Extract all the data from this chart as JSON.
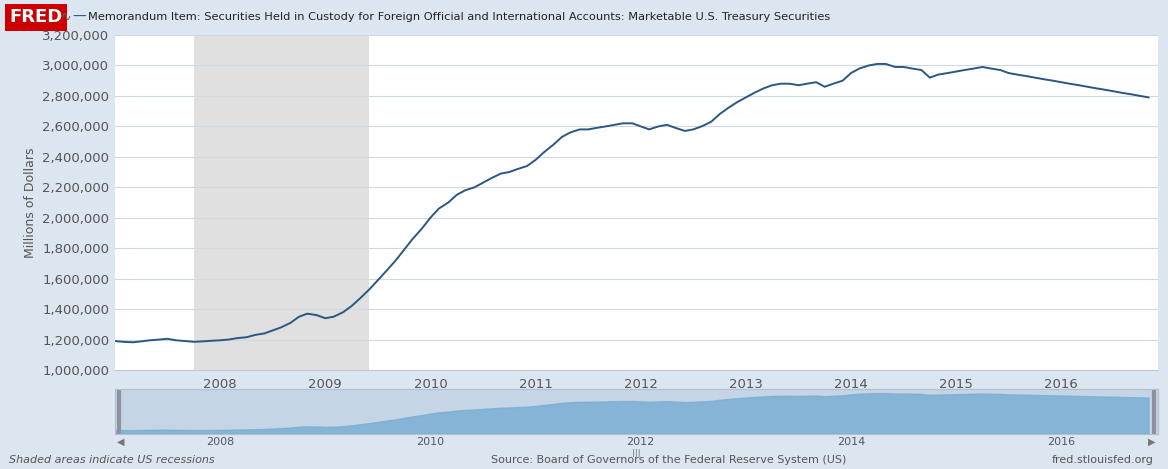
{
  "title": "Memorandum Item: Securities Held in Custody for Foreign Official and International Accounts: Marketable U.S. Treasury Securities",
  "ylabel": "Millions of Dollars",
  "line_color": "#2a5783",
  "background_color": "#dce6f0",
  "plot_bg_color": "#ffffff",
  "recession_color": "#e0e0e0",
  "recession_start": 2007.75,
  "recession_end": 2009.42,
  "ylim": [
    1000000,
    3200000
  ],
  "yticks": [
    1000000,
    1200000,
    1400000,
    1600000,
    1800000,
    2000000,
    2200000,
    2400000,
    2600000,
    2800000,
    3000000,
    3200000
  ],
  "fred_red": "#cc0000",
  "source_text": "Source: Board of Governors of the Federal Reserve System (US)",
  "recession_note": "Shaded areas indicate US recessions",
  "fred_url": "fred.stlouisfed.org",
  "line_width": 1.4,
  "data_x": [
    2007.0,
    2007.08,
    2007.17,
    2007.25,
    2007.33,
    2007.42,
    2007.5,
    2007.58,
    2007.67,
    2007.75,
    2007.83,
    2007.92,
    2008.0,
    2008.08,
    2008.17,
    2008.25,
    2008.33,
    2008.42,
    2008.5,
    2008.58,
    2008.67,
    2008.75,
    2008.83,
    2008.92,
    2009.0,
    2009.08,
    2009.17,
    2009.25,
    2009.33,
    2009.42,
    2009.5,
    2009.58,
    2009.67,
    2009.75,
    2009.83,
    2009.92,
    2010.0,
    2010.08,
    2010.17,
    2010.25,
    2010.33,
    2010.42,
    2010.5,
    2010.58,
    2010.67,
    2010.75,
    2010.83,
    2010.92,
    2011.0,
    2011.08,
    2011.17,
    2011.25,
    2011.33,
    2011.42,
    2011.5,
    2011.58,
    2011.67,
    2011.75,
    2011.83,
    2011.92,
    2012.0,
    2012.08,
    2012.17,
    2012.25,
    2012.33,
    2012.42,
    2012.5,
    2012.58,
    2012.67,
    2012.75,
    2012.83,
    2012.92,
    2013.0,
    2013.08,
    2013.17,
    2013.25,
    2013.33,
    2013.42,
    2013.5,
    2013.58,
    2013.67,
    2013.75,
    2013.83,
    2013.92,
    2014.0,
    2014.08,
    2014.17,
    2014.25,
    2014.33,
    2014.42,
    2014.5,
    2014.58,
    2014.67,
    2014.75,
    2014.83,
    2014.92,
    2015.0,
    2015.08,
    2015.17,
    2015.25,
    2015.33,
    2015.42,
    2015.5,
    2015.58,
    2015.67,
    2015.75,
    2015.83,
    2015.92,
    2016.0,
    2016.08,
    2016.17,
    2016.25,
    2016.33,
    2016.42,
    2016.5,
    2016.58,
    2016.67,
    2016.75,
    2016.83
  ],
  "data_y": [
    1190000,
    1185000,
    1182000,
    1188000,
    1195000,
    1200000,
    1205000,
    1195000,
    1190000,
    1185000,
    1188000,
    1192000,
    1195000,
    1200000,
    1210000,
    1215000,
    1230000,
    1240000,
    1260000,
    1280000,
    1310000,
    1350000,
    1370000,
    1360000,
    1340000,
    1350000,
    1380000,
    1420000,
    1470000,
    1530000,
    1590000,
    1650000,
    1720000,
    1790000,
    1860000,
    1930000,
    2000000,
    2060000,
    2100000,
    2150000,
    2180000,
    2200000,
    2230000,
    2260000,
    2290000,
    2300000,
    2320000,
    2340000,
    2380000,
    2430000,
    2480000,
    2530000,
    2560000,
    2580000,
    2580000,
    2590000,
    2600000,
    2610000,
    2620000,
    2620000,
    2600000,
    2580000,
    2600000,
    2610000,
    2590000,
    2570000,
    2580000,
    2600000,
    2630000,
    2680000,
    2720000,
    2760000,
    2790000,
    2820000,
    2850000,
    2870000,
    2880000,
    2880000,
    2870000,
    2880000,
    2890000,
    2860000,
    2880000,
    2900000,
    2950000,
    2980000,
    3000000,
    3010000,
    3010000,
    2990000,
    2990000,
    2980000,
    2970000,
    2920000,
    2940000,
    2950000,
    2960000,
    2970000,
    2980000,
    2990000,
    2980000,
    2970000,
    2950000,
    2940000,
    2930000,
    2920000,
    2910000,
    2900000,
    2890000,
    2880000,
    2870000,
    2860000,
    2850000,
    2840000,
    2830000,
    2820000,
    2810000,
    2800000,
    2790000
  ],
  "xmin": 2007.0,
  "xmax": 2016.92,
  "xticks": [
    2008,
    2009,
    2010,
    2011,
    2012,
    2013,
    2014,
    2015,
    2016
  ],
  "nav_xticks": [
    2008,
    2010,
    2012,
    2014,
    2016
  ],
  "nav_fill_color": "#7bafd4",
  "nav_bg_color": "#c5d5e5",
  "nav_border_color": "#b0c0d0"
}
